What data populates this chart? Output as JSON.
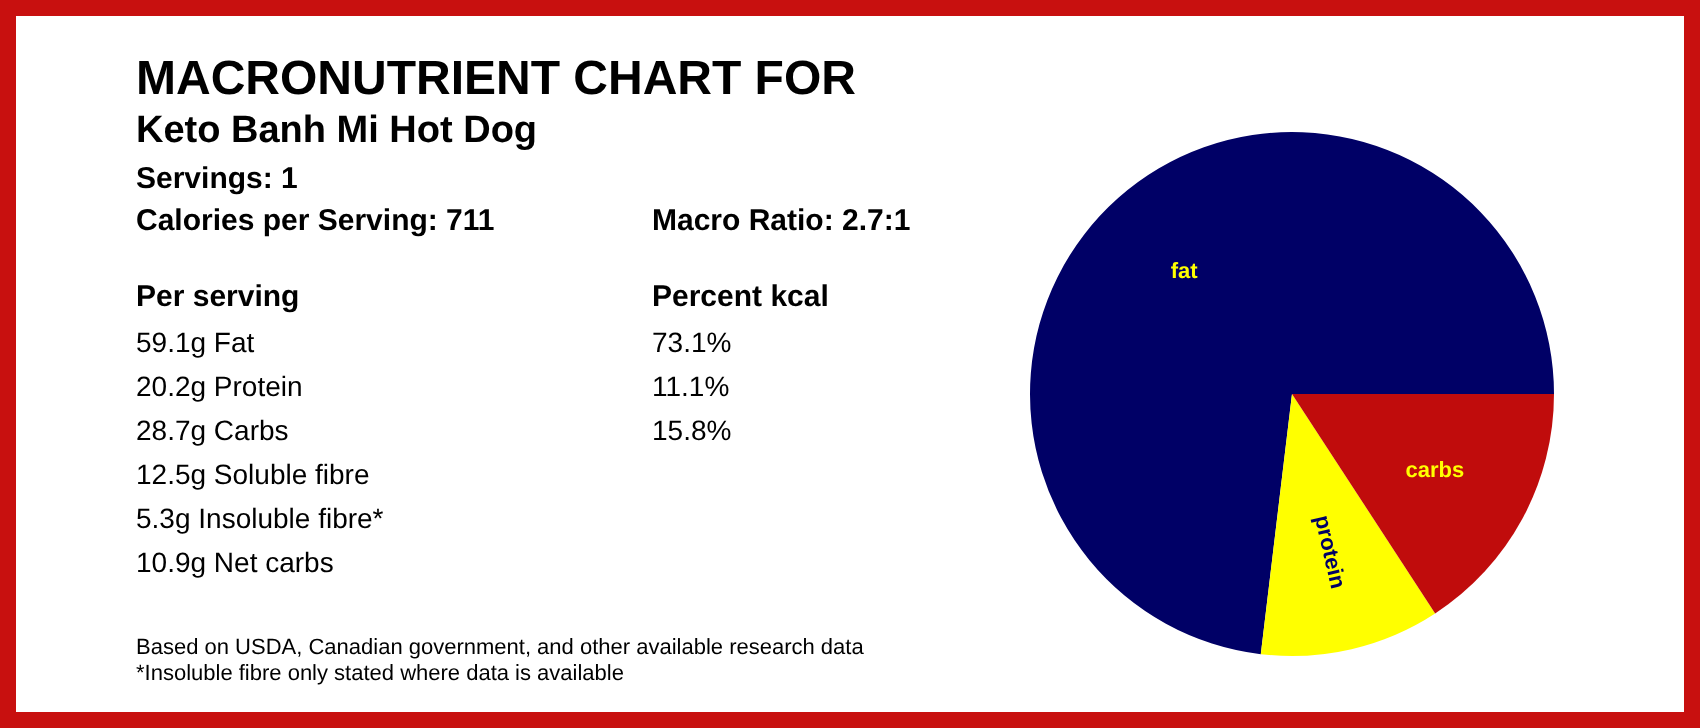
{
  "chart_data": {
    "type": "pie",
    "title": "MACRONUTRIENT CHART FOR",
    "subtitle": "Keto Banh Mi Hot Dog",
    "categories": [
      "fat",
      "protein",
      "carbs"
    ],
    "values": [
      73.1,
      11.1,
      15.8
    ],
    "colors": [
      "#000066",
      "#ffff00",
      "#c00c0c"
    ],
    "annotations": [
      "Servings: 1",
      "Calories per Serving: 711",
      "Macro Ratio: 2.7:1",
      "Per serving",
      "Percent kcal",
      "59.1g Fat",
      "73.1%",
      "20.2g Protein",
      "11.1%",
      "28.7g Carbs",
      "15.8%",
      "12.5g Soluble fibre",
      "5.3g Insoluble fibre*",
      "10.9g Net carbs",
      "Based on USDA, Canadian government, and other available research data",
      "*Insoluble fibre only stated where data is available"
    ],
    "legend": false
  }
}
